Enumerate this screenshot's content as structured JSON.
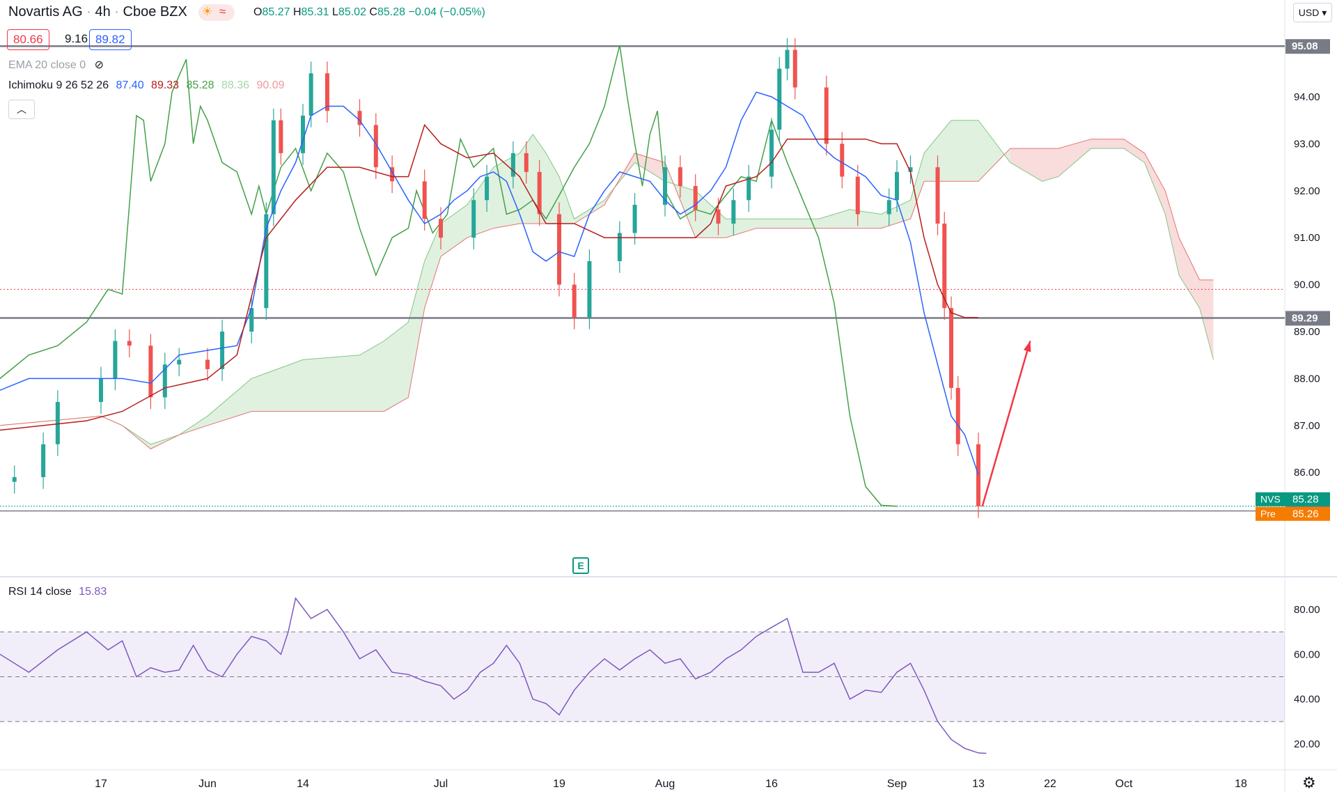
{
  "header": {
    "symbol_name": "Novartis AG",
    "interval": "4h",
    "exchange": "Cboe BZX",
    "open_label": "O",
    "open": "85.27",
    "high_label": "H",
    "high": "85.31",
    "low_label": "L",
    "low": "85.02",
    "close_label": "C",
    "close": "85.28",
    "change": "−0.04 (−0.05%)",
    "bid": "80.66",
    "spread": "9.16",
    "ask": "89.82",
    "currency": "USD"
  },
  "indicators": {
    "ema_label": "EMA 20 close 0",
    "ichimoku_label": "Ichimoku 9 26 52 26",
    "ichimoku_values": [
      "87.40",
      "89.33",
      "85.28",
      "88.36",
      "90.09"
    ],
    "ichimoku_colors": [
      "#2962ff",
      "#b71c1c",
      "#43a047",
      "#a5d6a7",
      "#ef9a9a"
    ],
    "rsi_label": "RSI 14 close",
    "rsi_value": "15.83"
  },
  "colors": {
    "up": "#26a69a",
    "down": "#ef5350",
    "tenkan": "#2962ff",
    "kijun": "#b71c1c",
    "chikou": "#43a047",
    "cloud_bull": "#a5d6a7",
    "cloud_bear": "#ef9a9a",
    "rsi": "#7e57c2",
    "rsi_band": "#7e57c2",
    "hline": "#787b86",
    "arrow": "#f23645"
  },
  "price_axis": {
    "ticks": [
      "95.08",
      "94.00",
      "93.00",
      "92.00",
      "91.00",
      "90.00",
      "89.29",
      "89.00",
      "88.00",
      "87.00",
      "86.00",
      "85.18"
    ],
    "nvs_label": "NVS",
    "nvs_value": "85.28",
    "pre_label": "Pre",
    "pre_value": "85.26"
  },
  "rsi_axis": {
    "ticks": [
      "80.00",
      "60.00",
      "40.00",
      "20.00"
    ]
  },
  "time_axis": {
    "labels": [
      "17",
      "Jun",
      "14",
      "Jul",
      "19",
      "Aug",
      "16",
      "Sep",
      "13",
      "22",
      "Oct",
      "18"
    ]
  },
  "chart_data": {
    "type": "candlestick",
    "title": "Novartis AG · 4h · Cboe BZX",
    "price_range": [
      84.5,
      96.0
    ],
    "horizontal_lines": [
      95.08,
      89.29,
      85.18
    ],
    "current_price": 85.28,
    "premarket_price": 85.26,
    "candles_approx_close_path": [
      {
        "t": "May 11",
        "c": 85.9
      },
      {
        "t": "May 13",
        "c": 86.6
      },
      {
        "t": "May 14",
        "c": 87.5
      },
      {
        "t": "May 17",
        "c": 88.0
      },
      {
        "t": "May 19",
        "c": 88.8
      },
      {
        "t": "May 21",
        "c": 88.7
      },
      {
        "t": "May 24",
        "c": 87.6
      },
      {
        "t": "May 26",
        "c": 88.3
      },
      {
        "t": "May 28",
        "c": 88.4
      },
      {
        "t": "Jun 1",
        "c": 88.2
      },
      {
        "t": "Jun 3",
        "c": 89.0
      },
      {
        "t": "Jun 7",
        "c": 89.5
      },
      {
        "t": "Jun 9",
        "c": 91.5
      },
      {
        "t": "Jun 10",
        "c": 93.5
      },
      {
        "t": "Jun 11",
        "c": 92.8
      },
      {
        "t": "Jun 14",
        "c": 93.6
      },
      {
        "t": "Jun 15",
        "c": 94.5
      },
      {
        "t": "Jun 17",
        "c": 93.7
      },
      {
        "t": "Jun 21",
        "c": 93.4
      },
      {
        "t": "Jun 23",
        "c": 92.5
      },
      {
        "t": "Jun 25",
        "c": 92.2
      },
      {
        "t": "Jun 29",
        "c": 91.4
      },
      {
        "t": "Jul 1",
        "c": 91.0
      },
      {
        "t": "Jul 6",
        "c": 91.8
      },
      {
        "t": "Jul 8",
        "c": 92.3
      },
      {
        "t": "Jul 12",
        "c": 92.8
      },
      {
        "t": "Jul 14",
        "c": 92.4
      },
      {
        "t": "Jul 16",
        "c": 91.5
      },
      {
        "t": "Jul 19",
        "c": 90.0
      },
      {
        "t": "Jul 21",
        "c": 89.3
      },
      {
        "t": "Jul 23",
        "c": 90.5
      },
      {
        "t": "Jul 27",
        "c": 91.1
      },
      {
        "t": "Jul 29",
        "c": 91.7
      },
      {
        "t": "Aug 2",
        "c": 92.5
      },
      {
        "t": "Aug 4",
        "c": 92.1
      },
      {
        "t": "Aug 6",
        "c": 91.6
      },
      {
        "t": "Aug 9",
        "c": 91.3
      },
      {
        "t": "Aug 11",
        "c": 91.8
      },
      {
        "t": "Aug 13",
        "c": 92.3
      },
      {
        "t": "Aug 16",
        "c": 93.3
      },
      {
        "t": "Aug 17",
        "c": 94.6
      },
      {
        "t": "Aug 18",
        "c": 95.0
      },
      {
        "t": "Aug 19",
        "c": 94.2
      },
      {
        "t": "Aug 23",
        "c": 93.0
      },
      {
        "t": "Aug 25",
        "c": 92.3
      },
      {
        "t": "Aug 27",
        "c": 91.5
      },
      {
        "t": "Aug 31",
        "c": 91.8
      },
      {
        "t": "Sep 1",
        "c": 92.4
      },
      {
        "t": "Sep 3",
        "c": 92.5
      },
      {
        "t": "Sep 7",
        "c": 91.3
      },
      {
        "t": "Sep 8",
        "c": 89.5
      },
      {
        "t": "Sep 9",
        "c": 87.8
      },
      {
        "t": "Sep 10",
        "c": 86.6
      },
      {
        "t": "Sep 13",
        "c": 85.28
      }
    ],
    "rsi_range": [
      15,
      87
    ],
    "rsi_bands": [
      70,
      50,
      30
    ],
    "rsi_last": 15.83
  }
}
